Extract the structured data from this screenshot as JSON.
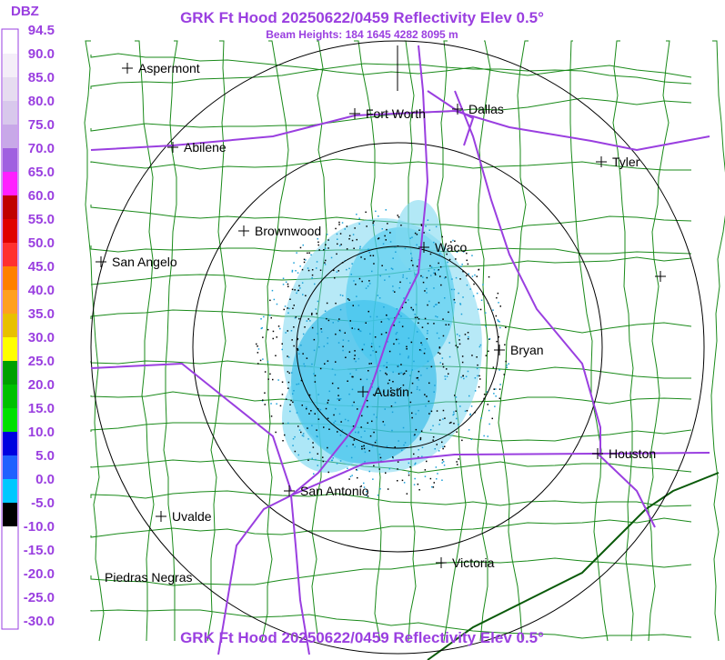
{
  "header": {
    "title": "GRK Ft Hood 20250622/0459 Reflectivity Elev 0.5°",
    "subtitle": "Beam Heights: 184 1645 4282 8095 m"
  },
  "legend": {
    "unit": "DBZ",
    "labels": [
      "94.5",
      "90.0",
      "85.0",
      "80.0",
      "75.0",
      "70.0",
      "65.0",
      "60.0",
      "55.0",
      "50.0",
      "45.0",
      "40.0",
      "35.0",
      "30.0",
      "25.0",
      "20.0",
      "15.0",
      "10.0",
      "5.0",
      "0.0",
      "-5.0",
      "-10.0",
      "-15.0",
      "-20.0",
      "-25.0",
      "-30.0"
    ]
  },
  "cities": [
    {
      "label": "Aspermont"
    },
    {
      "label": "Abilene"
    },
    {
      "label": "Fort Worth"
    },
    {
      "label": "Dallas"
    },
    {
      "label": "Tyler"
    },
    {
      "label": "Brownwood"
    },
    {
      "label": "Waco"
    },
    {
      "label": "San Angelo"
    },
    {
      "label": "Bryan"
    },
    {
      "label": "Austin"
    },
    {
      "label": "Houston"
    },
    {
      "label": "San Antonio"
    },
    {
      "label": "Uvalde"
    },
    {
      "label": "Victoria"
    },
    {
      "label": "Piedras Negras"
    }
  ],
  "footer": {
    "title": "GRK Ft Hood 20250622/0459 Reflectivity Elev 0.5°"
  }
}
